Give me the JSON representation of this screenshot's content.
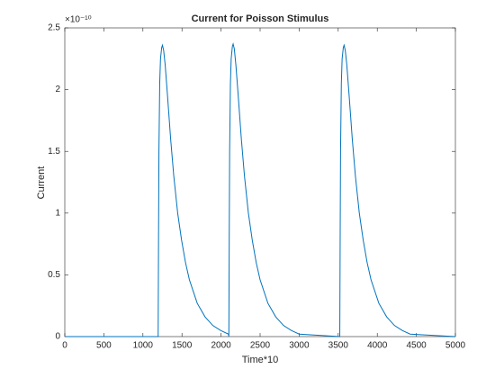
{
  "chart_data": {
    "type": "line",
    "title": "Current for Poisson Stimulus",
    "x_label": "Time*10",
    "y_label": "Current",
    "y_exponent": "×10⁻¹⁰",
    "xlim": [
      0,
      5000
    ],
    "xticks": [
      0,
      500,
      1000,
      1500,
      2000,
      2500,
      3000,
      3500,
      4000,
      4500,
      5000
    ],
    "ylim": [
      0,
      2.5
    ],
    "yticks": [
      0,
      0.5,
      1,
      1.5,
      2,
      2.5
    ],
    "x": [
      0,
      1195,
      1200,
      1205,
      1215,
      1225,
      1240,
      1250,
      1265,
      1285,
      1315,
      1355,
      1395,
      1445,
      1495,
      1545,
      1595,
      1695,
      1795,
      1895,
      1995,
      2095,
      2100,
      2105,
      2110,
      2120,
      2130,
      2145,
      2155,
      2170,
      2190,
      2220,
      2260,
      2300,
      2350,
      2400,
      2450,
      2500,
      2600,
      2700,
      2800,
      2900,
      3000,
      3520,
      3525,
      3530,
      3540,
      3550,
      3565,
      3575,
      3590,
      3610,
      3640,
      3680,
      3720,
      3770,
      3820,
      3870,
      3920,
      4020,
      4120,
      4220,
      4320,
      4420,
      5000
    ],
    "series": [
      {
        "name": "Current",
        "color": "#0072bd",
        "values": [
          0,
          0,
          0.8,
          1.5,
          2.05,
          2.25,
          2.34,
          2.36,
          2.32,
          2.2,
          1.95,
          1.6,
          1.3,
          1.0,
          0.78,
          0.6,
          0.46,
          0.27,
          0.16,
          0.09,
          0.05,
          0.02,
          0,
          0.8,
          1.5,
          2.05,
          2.25,
          2.35,
          2.37,
          2.33,
          2.2,
          1.95,
          1.6,
          1.3,
          1.0,
          0.78,
          0.6,
          0.46,
          0.27,
          0.16,
          0.09,
          0.05,
          0.02,
          0,
          0.8,
          1.5,
          2.05,
          2.25,
          2.34,
          2.36,
          2.32,
          2.2,
          1.95,
          1.6,
          1.3,
          1.0,
          0.78,
          0.6,
          0.46,
          0.27,
          0.16,
          0.09,
          0.05,
          0.02,
          0
        ]
      }
    ]
  }
}
